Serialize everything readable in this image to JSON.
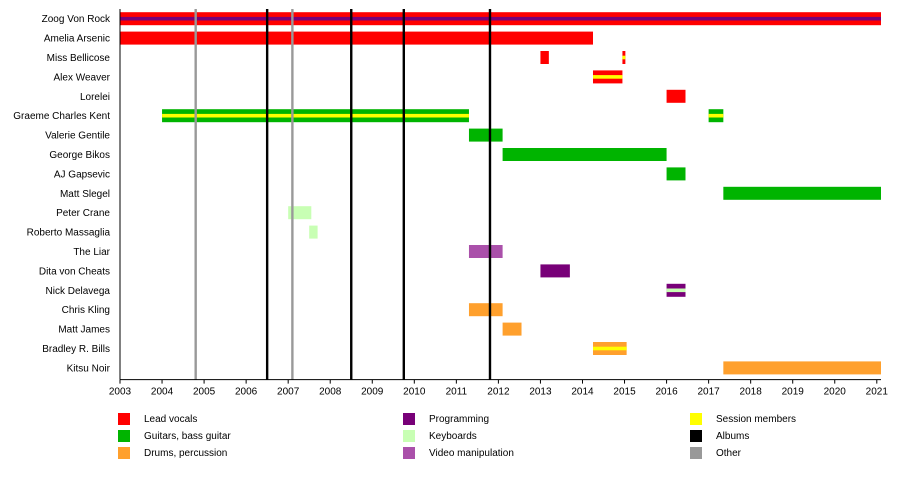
{
  "chart_data": {
    "type": "timeline",
    "title": "",
    "xlabel": "",
    "ylabel": "",
    "x_range": [
      2003,
      2021.1
    ],
    "x_ticks": [
      2003,
      2004,
      2005,
      2006,
      2007,
      2008,
      2009,
      2010,
      2011,
      2012,
      2013,
      2014,
      2015,
      2016,
      2017,
      2018,
      2019,
      2020,
      2021
    ],
    "grid": false,
    "members": [
      {
        "name": "Zoog Von Rock",
        "bars": [
          {
            "start": 2003.0,
            "end": 2021.1,
            "roles": [
              "lead_vocals",
              "programming"
            ],
            "style": "center-stripe"
          }
        ]
      },
      {
        "name": "Amelia Arsenic",
        "bars": [
          {
            "start": 2003.0,
            "end": 2014.25,
            "roles": [
              "lead_vocals"
            ]
          }
        ]
      },
      {
        "name": "Miss Bellicose",
        "bars": [
          {
            "start": 2013.0,
            "end": 2013.2,
            "roles": [
              "lead_vocals"
            ]
          },
          {
            "start": 2014.95,
            "end": 2015.02,
            "roles": [
              "lead_vocals",
              "session"
            ],
            "style": "center-stripe"
          }
        ]
      },
      {
        "name": "Alex Weaver",
        "bars": [
          {
            "start": 2014.25,
            "end": 2014.95,
            "roles": [
              "lead_vocals",
              "session"
            ],
            "style": "center-stripe"
          }
        ]
      },
      {
        "name": "Lorelei",
        "bars": [
          {
            "start": 2016.0,
            "end": 2016.45,
            "roles": [
              "lead_vocals"
            ]
          }
        ]
      },
      {
        "name": "Graeme Charles Kent",
        "bars": [
          {
            "start": 2004.0,
            "end": 2011.3,
            "roles": [
              "guitars",
              "session"
            ],
            "style": "center-stripe"
          },
          {
            "start": 2017.0,
            "end": 2017.35,
            "roles": [
              "guitars",
              "session"
            ],
            "style": "center-stripe"
          }
        ]
      },
      {
        "name": "Valerie Gentile",
        "bars": [
          {
            "start": 2011.3,
            "end": 2012.1,
            "roles": [
              "guitars"
            ]
          }
        ]
      },
      {
        "name": "George Bikos",
        "bars": [
          {
            "start": 2012.1,
            "end": 2016.0,
            "roles": [
              "guitars"
            ]
          }
        ]
      },
      {
        "name": "AJ Gapsevic",
        "bars": [
          {
            "start": 2016.0,
            "end": 2016.45,
            "roles": [
              "guitars"
            ]
          }
        ]
      },
      {
        "name": "Matt Slegel",
        "bars": [
          {
            "start": 2017.35,
            "end": 2021.1,
            "roles": [
              "guitars"
            ]
          }
        ]
      },
      {
        "name": "Peter Crane",
        "bars": [
          {
            "start": 2007.0,
            "end": 2007.55,
            "roles": [
              "keyboards"
            ]
          }
        ]
      },
      {
        "name": "Roberto Massaglia",
        "bars": [
          {
            "start": 2007.5,
            "end": 2007.7,
            "roles": [
              "keyboards"
            ]
          }
        ]
      },
      {
        "name": "The Liar",
        "bars": [
          {
            "start": 2011.3,
            "end": 2012.1,
            "roles": [
              "video"
            ]
          }
        ]
      },
      {
        "name": "Dita von Cheats",
        "bars": [
          {
            "start": 2013.0,
            "end": 2013.7,
            "roles": [
              "programming"
            ]
          }
        ]
      },
      {
        "name": "Nick Delavega",
        "bars": [
          {
            "start": 2016.0,
            "end": 2016.45,
            "roles": [
              "programming",
              "keyboards"
            ],
            "style": "center-stripe"
          }
        ]
      },
      {
        "name": "Chris Kling",
        "bars": [
          {
            "start": 2011.3,
            "end": 2012.1,
            "roles": [
              "drums"
            ]
          }
        ]
      },
      {
        "name": "Matt James",
        "bars": [
          {
            "start": 2012.1,
            "end": 2012.55,
            "roles": [
              "drums"
            ]
          }
        ]
      },
      {
        "name": "Bradley R. Bills",
        "bars": [
          {
            "start": 2014.25,
            "end": 2015.05,
            "roles": [
              "drums",
              "session"
            ],
            "style": "center-stripe"
          }
        ]
      },
      {
        "name": "Kitsu Noir",
        "bars": [
          {
            "start": 2017.35,
            "end": 2021.1,
            "roles": [
              "drums"
            ]
          }
        ]
      }
    ],
    "events": [
      {
        "type": "other",
        "x": 2004.8
      },
      {
        "type": "albums",
        "x": 2006.5
      },
      {
        "type": "other",
        "x": 2007.1
      },
      {
        "type": "albums",
        "x": 2008.5
      },
      {
        "type": "albums",
        "x": 2009.75
      },
      {
        "type": "albums",
        "x": 2011.8
      }
    ],
    "legend": [
      {
        "key": "lead_vocals",
        "label": "Lead vocals",
        "color": "#ff0000"
      },
      {
        "key": "guitars",
        "label": "Guitars, bass guitar",
        "color": "#00b400"
      },
      {
        "key": "drums",
        "label": "Drums, percussion",
        "color": "#ffa02d"
      },
      {
        "key": "programming",
        "label": "Programming",
        "color": "#780078"
      },
      {
        "key": "keyboards",
        "label": "Keyboards",
        "color": "#c8ffb4"
      },
      {
        "key": "video",
        "label": "Video manipulation",
        "color": "#aa50aa"
      },
      {
        "key": "session",
        "label": "Session members",
        "color": "#ffff00"
      },
      {
        "key": "albums",
        "label": "Albums",
        "color": "#000000"
      },
      {
        "key": "other",
        "label": "Other",
        "color": "#999999"
      }
    ]
  }
}
